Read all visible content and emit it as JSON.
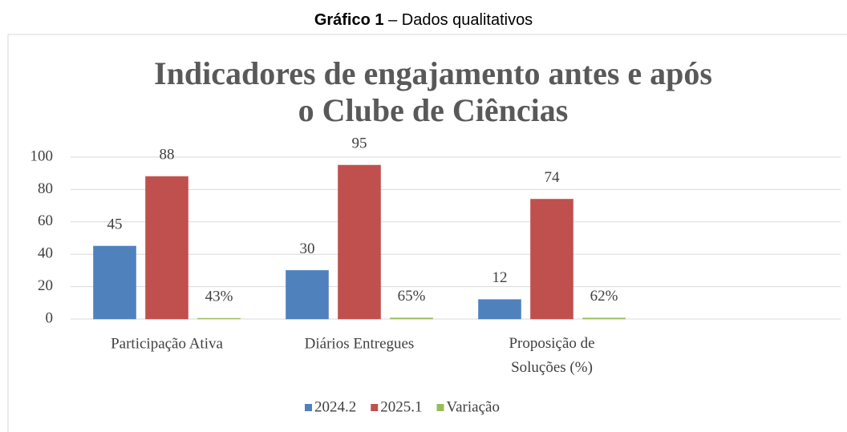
{
  "caption": {
    "label": "Gráfico 1",
    "text": "– Dados qualitativos"
  },
  "chart_data": {
    "type": "bar",
    "title": [
      "Indicadores de engajamento antes e após",
      "o Clube de Ciências"
    ],
    "categories": [
      "Participação Ativa",
      "Diários Entregues",
      "Proposição de Soluções (%)",
      null
    ],
    "series": [
      {
        "name": "2024.2",
        "color": "#4f81bd",
        "values": [
          45,
          30,
          12,
          null
        ]
      },
      {
        "name": "2025.1",
        "color": "#c0504d",
        "values": [
          88,
          95,
          74,
          null
        ]
      },
      {
        "name": "Variação",
        "color": "#9bbb59",
        "values": [
          0.43,
          0.65,
          0.62,
          null
        ],
        "value_labels": [
          "43%",
          "65%",
          "62%",
          null
        ]
      }
    ],
    "ylim": [
      0,
      100
    ],
    "yticks": [
      0,
      20,
      40,
      60,
      80,
      100
    ],
    "grid": true,
    "legend": "bottom"
  }
}
